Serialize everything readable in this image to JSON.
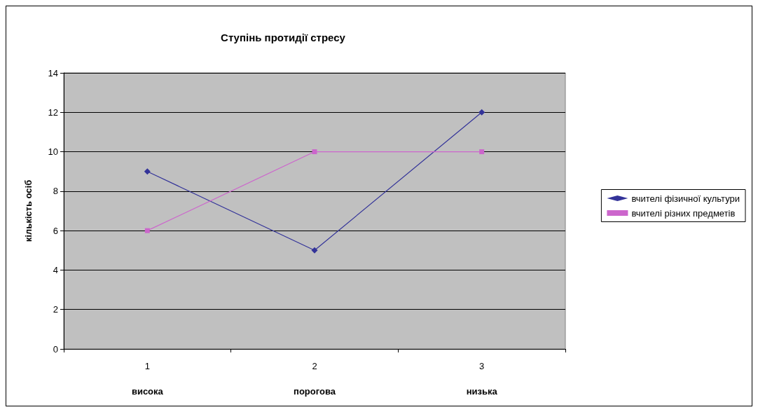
{
  "chart_data": {
    "type": "line",
    "title": "Ступінь протидії стресу",
    "ylabel": "кількість осіб",
    "categories": [
      "1",
      "2",
      "3"
    ],
    "annotations": [
      "висока",
      "порогова",
      "низька"
    ],
    "series": [
      {
        "name": "вчителі фізичної культури",
        "color": "#333399",
        "marker": "diamond",
        "values": [
          9,
          5,
          12
        ]
      },
      {
        "name": "вчителі різних предметів",
        "color": "#cc66cc",
        "marker": "square",
        "values": [
          6,
          10,
          10
        ]
      }
    ],
    "ylim": [
      0,
      14
    ],
    "yticks": [
      0,
      2,
      4,
      6,
      8,
      10,
      12,
      14
    ],
    "grid": "y",
    "legend": "right",
    "line_style": "solid"
  }
}
